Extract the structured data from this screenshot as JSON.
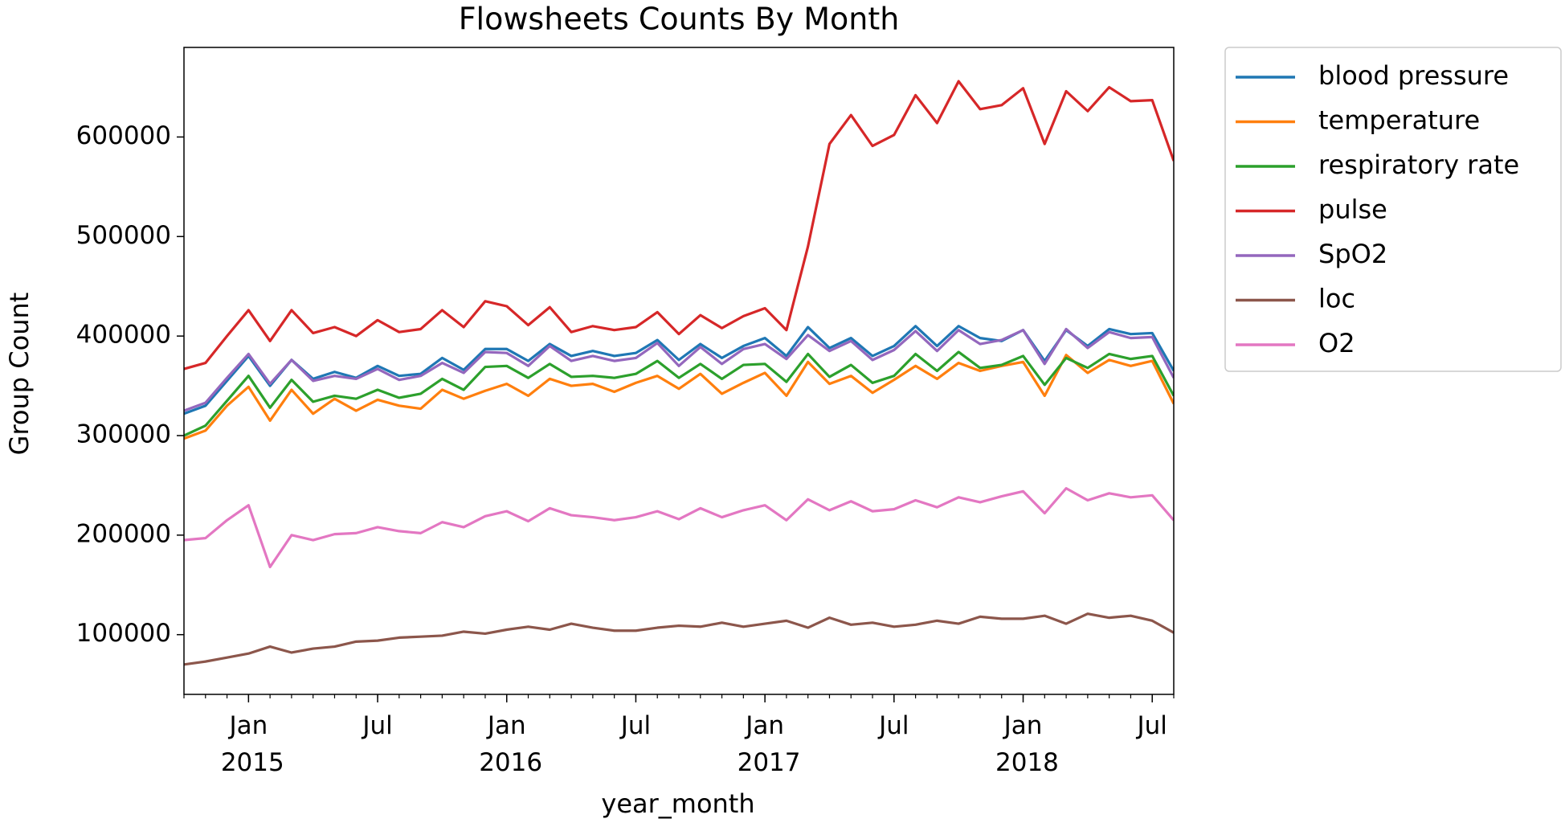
{
  "chart_data": {
    "type": "line",
    "title": "Flowsheets Counts By Month",
    "xlabel": "year_month",
    "ylabel": "Group Count",
    "x": [
      "2014-10",
      "2014-11",
      "2014-12",
      "2015-01",
      "2015-02",
      "2015-03",
      "2015-04",
      "2015-05",
      "2015-06",
      "2015-07",
      "2015-08",
      "2015-09",
      "2015-10",
      "2015-11",
      "2015-12",
      "2016-01",
      "2016-02",
      "2016-03",
      "2016-04",
      "2016-05",
      "2016-06",
      "2016-07",
      "2016-08",
      "2016-09",
      "2016-10",
      "2016-11",
      "2016-12",
      "2017-01",
      "2017-02",
      "2017-03",
      "2017-04",
      "2017-05",
      "2017-06",
      "2017-07",
      "2017-08",
      "2017-09",
      "2017-10",
      "2017-11",
      "2017-12",
      "2018-01",
      "2018-02",
      "2018-03",
      "2018-04",
      "2018-05",
      "2018-06",
      "2018-07",
      "2018-08"
    ],
    "xlim": [
      "2014-10",
      "2018-08"
    ],
    "xticks": [
      {
        "value": "2015-01",
        "label": "Jan 2015"
      },
      {
        "value": "2015-07",
        "label": "Jul"
      },
      {
        "value": "2016-01",
        "label": "Jan 2016"
      },
      {
        "value": "2016-07",
        "label": "Jul"
      },
      {
        "value": "2017-01",
        "label": "Jan 2017"
      },
      {
        "value": "2017-07",
        "label": "Jul"
      },
      {
        "value": "2018-01",
        "label": "Jan 2018"
      },
      {
        "value": "2018-07",
        "label": "Jul"
      }
    ],
    "ylim": [
      40000,
      690000
    ],
    "yticks": [
      100000,
      200000,
      300000,
      400000,
      500000,
      600000
    ],
    "legend": "outside right",
    "series": [
      {
        "name": "blood pressure",
        "color": "#1f77b4",
        "values": [
          322000,
          330000,
          355000,
          380000,
          350000,
          376000,
          357000,
          364000,
          358000,
          370000,
          360000,
          362000,
          378000,
          366000,
          387000,
          387000,
          375000,
          392000,
          380000,
          385000,
          380000,
          383000,
          396000,
          376000,
          392000,
          378000,
          390000,
          398000,
          380000,
          409000,
          388000,
          398000,
          380000,
          390000,
          410000,
          390000,
          410000,
          398000,
          395000,
          406000,
          375000,
          406000,
          390000,
          407000,
          402000,
          403000,
          365000
        ]
      },
      {
        "name": "temperature",
        "color": "#ff7f0e",
        "values": [
          297000,
          305000,
          330000,
          349000,
          315000,
          346000,
          322000,
          337000,
          325000,
          336000,
          330000,
          327000,
          346000,
          337000,
          345000,
          352000,
          340000,
          357000,
          350000,
          352000,
          344000,
          353000,
          360000,
          347000,
          362000,
          342000,
          353000,
          363000,
          340000,
          374000,
          352000,
          360000,
          343000,
          356000,
          370000,
          357000,
          373000,
          365000,
          370000,
          374000,
          340000,
          381000,
          363000,
          376000,
          370000,
          375000,
          332000
        ]
      },
      {
        "name": "respiratory rate",
        "color": "#2ca02c",
        "values": [
          300000,
          310000,
          335000,
          360000,
          328000,
          356000,
          334000,
          340000,
          337000,
          346000,
          338000,
          342000,
          357000,
          346000,
          369000,
          370000,
          358000,
          372000,
          359000,
          360000,
          358000,
          362000,
          375000,
          358000,
          372000,
          357000,
          371000,
          372000,
          354000,
          382000,
          359000,
          371000,
          353000,
          360000,
          382000,
          365000,
          384000,
          368000,
          371000,
          380000,
          351000,
          378000,
          368000,
          382000,
          377000,
          380000,
          340000
        ]
      },
      {
        "name": "pulse",
        "color": "#d62728",
        "values": [
          367000,
          373000,
          400000,
          426000,
          395000,
          426000,
          403000,
          409000,
          400000,
          416000,
          404000,
          407000,
          426000,
          409000,
          435000,
          430000,
          411000,
          429000,
          404000,
          410000,
          406000,
          409000,
          424000,
          402000,
          421000,
          408000,
          420000,
          428000,
          406000,
          490000,
          593000,
          622000,
          591000,
          602000,
          642000,
          614000,
          656000,
          628000,
          632000,
          649000,
          593000,
          646000,
          626000,
          650000,
          636000,
          637000,
          576000
        ]
      },
      {
        "name": "SpO2",
        "color": "#9467bd",
        "values": [
          325000,
          333000,
          358000,
          382000,
          352000,
          376000,
          355000,
          360000,
          357000,
          367000,
          356000,
          360000,
          373000,
          363000,
          384000,
          383000,
          370000,
          390000,
          375000,
          380000,
          375000,
          378000,
          393000,
          370000,
          389000,
          372000,
          387000,
          392000,
          377000,
          401000,
          385000,
          395000,
          376000,
          386000,
          405000,
          385000,
          406000,
          392000,
          396000,
          406000,
          372000,
          407000,
          388000,
          404000,
          398000,
          399000,
          358000
        ]
      },
      {
        "name": "loc",
        "color": "#8c564b",
        "values": [
          70000,
          73000,
          77000,
          81000,
          88000,
          82000,
          86000,
          88000,
          93000,
          94000,
          97000,
          98000,
          99000,
          103000,
          101000,
          105000,
          108000,
          105000,
          111000,
          107000,
          104000,
          104000,
          107000,
          109000,
          108000,
          112000,
          108000,
          111000,
          114000,
          107000,
          117000,
          110000,
          112000,
          108000,
          110000,
          114000,
          111000,
          118000,
          116000,
          116000,
          119000,
          111000,
          121000,
          117000,
          119000,
          114000,
          102000
        ]
      },
      {
        "name": "O2",
        "color": "#e377c2",
        "values": [
          195000,
          197000,
          215000,
          230000,
          168000,
          200000,
          195000,
          201000,
          202000,
          208000,
          204000,
          202000,
          213000,
          208000,
          219000,
          224000,
          214000,
          227000,
          220000,
          218000,
          215000,
          218000,
          224000,
          216000,
          227000,
          218000,
          225000,
          230000,
          215000,
          236000,
          225000,
          234000,
          224000,
          226000,
          235000,
          228000,
          238000,
          233000,
          239000,
          244000,
          222000,
          247000,
          235000,
          242000,
          238000,
          240000,
          215000
        ]
      }
    ]
  }
}
